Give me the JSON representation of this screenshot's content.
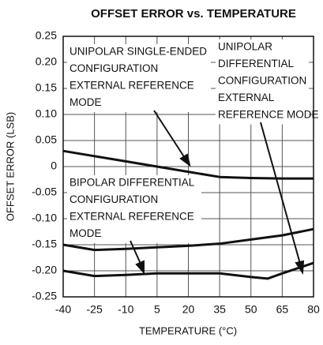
{
  "chart_data": {
    "type": "line",
    "title": "OFFSET ERROR vs. TEMPERATURE",
    "x_label": "TEMPERATURE (°C)",
    "y_label": "OFFSET ERROR (LSB)",
    "xlim": [
      -40,
      80
    ],
    "xticks": [
      -40,
      -25,
      -10,
      5,
      20,
      35,
      50,
      65,
      80
    ],
    "ylim": [
      -0.25,
      0.25
    ],
    "yticks": [
      {
        "value": 0.25,
        "label": "0.25"
      },
      {
        "value": 0.2,
        "label": "0.20"
      },
      {
        "value": 0.15,
        "label": "0.15"
      },
      {
        "value": 0.1,
        "label": "0.10"
      },
      {
        "value": 0.05,
        "label": "0.05"
      },
      0,
      -0.05,
      {
        "value": -0.1,
        "label": "-0.10"
      },
      -0.15,
      {
        "value": -0.2,
        "label": "-0.20"
      },
      -0.25
    ],
    "grid": true,
    "series": [
      {
        "color": "#111111",
        "x": [
          -40,
          -25,
          -10,
          5,
          20,
          35,
          50,
          65,
          80
        ],
        "values": [
          0.03,
          0.02,
          0.01,
          0.0,
          -0.01,
          -0.02,
          -0.022,
          -0.023,
          -0.023
        ]
      },
      {
        "color": "#111111",
        "x": [
          -40,
          -25,
          -10,
          5,
          20,
          35,
          50,
          65,
          80
        ],
        "values": [
          -0.15,
          -0.16,
          -0.158,
          -0.155,
          -0.152,
          -0.148,
          -0.14,
          -0.132,
          -0.12
        ]
      },
      {
        "color": "#111111",
        "x": [
          -40,
          -25,
          -10,
          5,
          20,
          35,
          50,
          58,
          65,
          80
        ],
        "values": [
          -0.2,
          -0.21,
          -0.208,
          -0.205,
          -0.205,
          -0.205,
          -0.212,
          -0.215,
          -0.205,
          -0.185
        ]
      }
    ],
    "annotations": [
      {
        "lines": [
          "UNIPOLAR SINGLE-ENDED",
          "CONFIGURATION",
          "EXTERNAL REFERENCE",
          "MODE"
        ]
      },
      {
        "lines": [
          "UNIPOLAR",
          "DIFFERENTIAL",
          "CONFIGURATION",
          "EXTERNAL",
          "REFERENCE MODE"
        ]
      },
      {
        "lines": [
          "BIPOLAR DIFFERENTIAL",
          "CONFIGURATION",
          "EXTERNAL REFERENCE",
          "MODE"
        ]
      }
    ]
  }
}
